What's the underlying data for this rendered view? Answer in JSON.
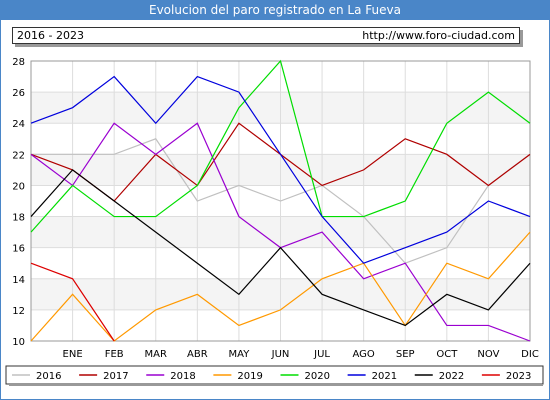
{
  "title": "Evolucion del paro registrado en La Fueva",
  "period": "2016 - 2023",
  "website": "http://www.foro-ciudad.com",
  "chart_data": {
    "type": "line",
    "title": "Evolucion del paro registrado en La Fueva",
    "x_categories": [
      "",
      "ENE",
      "FEB",
      "MAR",
      "ABR",
      "MAY",
      "JUN",
      "JUL",
      "AGO",
      "SEP",
      "OCT",
      "NOV",
      "DIC"
    ],
    "ylim": [
      10,
      28
    ],
    "yticks": [
      10,
      12,
      14,
      16,
      18,
      20,
      22,
      24,
      26,
      28
    ],
    "grid": true,
    "legend_position": "bottom",
    "series": [
      {
        "name": "2016",
        "color": "#c0c0c0",
        "values": [
          22,
          22,
          22,
          23,
          19,
          20,
          19,
          20,
          18,
          15,
          16,
          20,
          22
        ]
      },
      {
        "name": "2017",
        "color": "#b00000",
        "values": [
          22,
          21,
          19,
          22,
          20,
          24,
          22,
          20,
          21,
          23,
          22,
          20,
          22
        ]
      },
      {
        "name": "2018",
        "color": "#9a00d0",
        "values": [
          22,
          20,
          24,
          22,
          24,
          18,
          16,
          17,
          14,
          15,
          11,
          11,
          10
        ]
      },
      {
        "name": "2019",
        "color": "#ff9900",
        "values": [
          10,
          13,
          10,
          12,
          13,
          11,
          12,
          14,
          15,
          11,
          15,
          14,
          17
        ]
      },
      {
        "name": "2020",
        "color": "#00dd00",
        "values": [
          17,
          20,
          18,
          18,
          20,
          25,
          28,
          18,
          18,
          19,
          24,
          26,
          24
        ]
      },
      {
        "name": "2021",
        "color": "#0000dd",
        "values": [
          24,
          25,
          27,
          24,
          27,
          26,
          22,
          18,
          15,
          16,
          17,
          19,
          18
        ]
      },
      {
        "name": "2022",
        "color": "#000000",
        "values": [
          18,
          21,
          19,
          17,
          15,
          13,
          16,
          13,
          12,
          11,
          13,
          12,
          15
        ]
      },
      {
        "name": "2023",
        "color": "#dd0000",
        "values": [
          15,
          14,
          10
        ]
      }
    ]
  }
}
